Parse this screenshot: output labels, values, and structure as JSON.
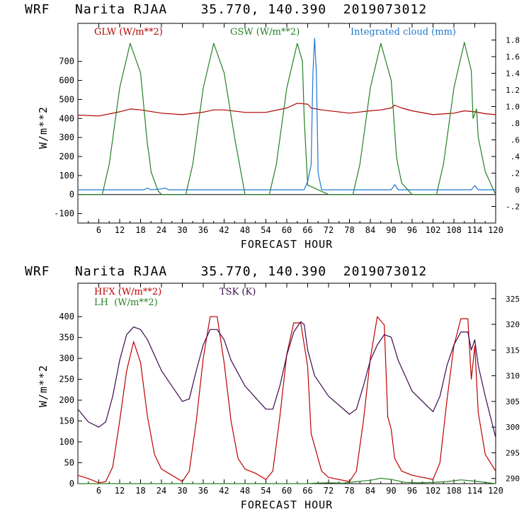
{
  "chart_data": [
    {
      "type": "line",
      "title": "WRF   Narita RJAA    35.770, 140.390  2019073012",
      "xlabel": "FORECAST HOUR",
      "ylabel": "W/m**2",
      "xlim": [
        0,
        120
      ],
      "ylim": [
        -150,
        900
      ],
      "ylim_right": [
        -0.4,
        2.0
      ],
      "x_ticks": [
        6,
        12,
        18,
        24,
        30,
        36,
        42,
        48,
        54,
        60,
        66,
        72,
        78,
        84,
        90,
        96,
        102,
        108,
        114,
        120
      ],
      "y_ticks": [
        -100,
        0,
        100,
        200,
        300,
        400,
        500,
        600,
        700
      ],
      "y_ticks_right": [
        -0.2,
        0,
        0.2,
        0.4,
        0.6,
        0.8,
        1.0,
        1.2,
        1.4,
        1.6,
        1.8
      ],
      "y_tick_labels_right": [
        "-.2",
        "0",
        ".2",
        ".4",
        ".6",
        ".8",
        "1.0",
        "1.2",
        "1.4",
        "1.6",
        "1.8"
      ],
      "series": [
        {
          "name": "GLW (W/m**2)",
          "color": "#b00000",
          "axis": "left",
          "x": [
            0,
            6,
            12,
            15,
            18,
            24,
            30,
            36,
            39,
            42,
            48,
            54,
            60,
            63,
            66,
            67,
            70,
            78,
            84,
            87,
            90,
            91,
            93,
            96,
            102,
            108,
            111,
            114,
            117,
            120
          ],
          "values": [
            418,
            413,
            435,
            450,
            445,
            428,
            420,
            433,
            445,
            445,
            432,
            432,
            455,
            480,
            475,
            455,
            445,
            428,
            440,
            445,
            455,
            470,
            455,
            440,
            420,
            428,
            440,
            435,
            425,
            420
          ]
        },
        {
          "name": "GSW (W/m**2)",
          "color": "#238023",
          "axis": "left",
          "x": [
            0,
            7,
            9,
            12,
            15,
            18,
            20,
            20.5,
            21,
            23,
            24,
            31,
            33,
            36,
            39,
            42,
            45,
            48,
            55,
            57,
            60,
            63,
            64.5,
            65,
            66,
            72,
            79,
            81,
            84,
            87,
            90,
            91.5,
            92,
            93,
            96,
            103,
            105,
            108,
            111,
            113,
            113.5,
            114.5,
            115,
            117,
            120
          ],
          "values": [
            0,
            0,
            160,
            560,
            795,
            640,
            260,
            200,
            120,
            20,
            0,
            0,
            160,
            560,
            795,
            640,
            300,
            0,
            0,
            160,
            560,
            795,
            700,
            400,
            50,
            0,
            0,
            160,
            560,
            795,
            600,
            200,
            150,
            60,
            0,
            0,
            160,
            560,
            800,
            650,
            400,
            450,
            300,
            120,
            0
          ]
        },
        {
          "name": "Integrated cloud (mm)",
          "color": "#1f77d0",
          "axis": "right",
          "x": [
            0,
            19,
            20,
            21,
            24,
            25,
            26,
            65,
            66,
            67,
            67.5,
            68,
            68.5,
            69,
            70,
            90,
            91,
            92,
            113,
            114,
            115,
            120
          ],
          "values": [
            0,
            0,
            0.02,
            0,
            0.01,
            0.02,
            0,
            0,
            0.1,
            0.3,
            1.4,
            1.82,
            1.4,
            0.2,
            0,
            0,
            0.06,
            0,
            0,
            0.05,
            0,
            0
          ]
        }
      ]
    },
    {
      "type": "line",
      "title": "WRF   Narita RJAA    35.770, 140.390  2019073012",
      "xlabel": "FORECAST HOUR",
      "ylabel": "W/m**2",
      "xlim": [
        0,
        120
      ],
      "ylim": [
        0,
        480
      ],
      "ylim_right": [
        289,
        328
      ],
      "x_ticks": [
        6,
        12,
        18,
        24,
        30,
        36,
        42,
        48,
        54,
        60,
        66,
        72,
        78,
        84,
        90,
        96,
        102,
        108,
        114,
        120
      ],
      "y_ticks": [
        0,
        50,
        100,
        150,
        200,
        250,
        300,
        350,
        400
      ],
      "y_ticks_right": [
        290,
        295,
        300,
        305,
        310,
        315,
        320,
        325
      ],
      "series": [
        {
          "name": "HFX (W/m**2)",
          "color": "#c00000",
          "axis": "left",
          "x": [
            0,
            3,
            6,
            8,
            10,
            12,
            14,
            16,
            18,
            20,
            22,
            24,
            27,
            30,
            32,
            34,
            36,
            38,
            40,
            42,
            44,
            46,
            48,
            51,
            54,
            56,
            58,
            60,
            62,
            64,
            66,
            67,
            70,
            72,
            78,
            80,
            82,
            84,
            86,
            88,
            89,
            90,
            91,
            93,
            96,
            102,
            104,
            106,
            108,
            110,
            112,
            113,
            114,
            115,
            117,
            120
          ],
          "values": [
            20,
            12,
            2,
            5,
            40,
            150,
            270,
            340,
            290,
            160,
            70,
            35,
            20,
            5,
            30,
            150,
            300,
            400,
            400,
            290,
            150,
            60,
            35,
            25,
            10,
            30,
            160,
            310,
            385,
            385,
            280,
            120,
            30,
            15,
            5,
            30,
            150,
            300,
            400,
            380,
            160,
            130,
            60,
            30,
            20,
            10,
            50,
            200,
            330,
            395,
            395,
            250,
            330,
            170,
            70,
            30
          ]
        },
        {
          "name": "LH  (W/m**2)",
          "color": "#238023",
          "axis": "left",
          "x": [
            0,
            66,
            68,
            72,
            76,
            80,
            84,
            87,
            90,
            94,
            98,
            102,
            106,
            110,
            114,
            118,
            120
          ],
          "values": [
            0,
            0,
            1,
            2,
            1,
            5,
            8,
            13,
            10,
            3,
            2,
            3,
            5,
            9,
            6,
            2,
            0
          ]
        },
        {
          "name": "TSK (K)",
          "color": "#3c0a50",
          "axis": "right",
          "x": [
            0,
            3,
            6,
            8,
            10,
            12,
            14,
            16,
            18,
            20,
            24,
            30,
            32,
            34,
            36,
            38,
            40,
            42,
            44,
            48,
            54,
            56,
            58,
            60,
            62,
            64,
            65,
            66,
            68,
            72,
            78,
            80,
            82,
            84,
            86,
            88,
            90,
            92,
            96,
            102,
            104,
            106,
            108,
            110,
            112,
            113,
            114,
            115,
            117,
            120
          ],
          "values": [
            303.5,
            301,
            300,
            301,
            306,
            313,
            318,
            319.5,
            319,
            317,
            311,
            305,
            305.5,
            311,
            316,
            319,
            319,
            317,
            313,
            308,
            303.5,
            303.5,
            308,
            314,
            318.5,
            320.5,
            320,
            315,
            310,
            306,
            302.5,
            303.5,
            308,
            313,
            316,
            318,
            317.5,
            313,
            307,
            303,
            306,
            312,
            316,
            318.5,
            318.5,
            315,
            317,
            312,
            306,
            298
          ]
        }
      ]
    }
  ]
}
